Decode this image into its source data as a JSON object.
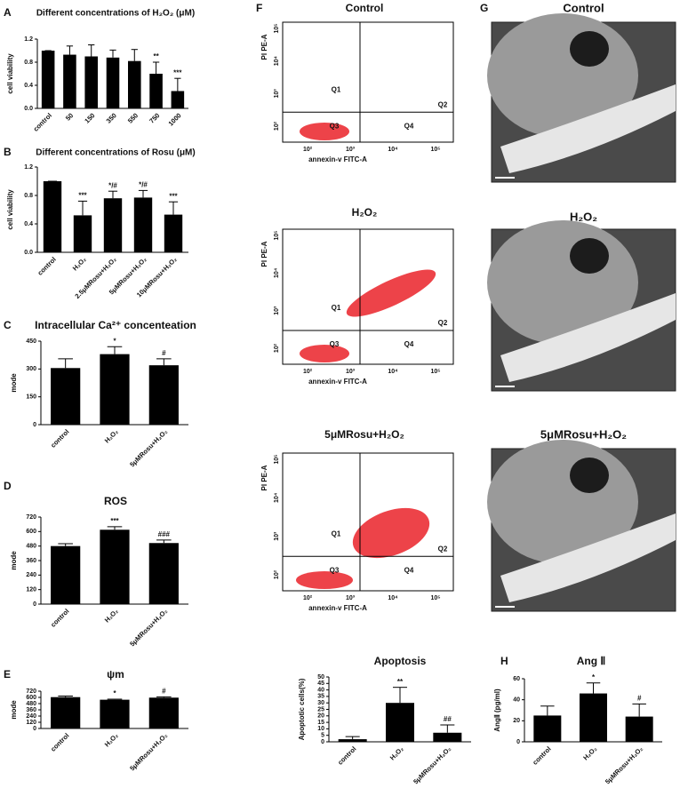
{
  "chart_data": [
    {
      "type": "bar",
      "panel": "A",
      "title": "Different concentrations of  H₂O₂ (μM)",
      "y_label": "cell viability",
      "categories": [
        "control",
        "50",
        "150",
        "350",
        "550",
        "750",
        "1000"
      ],
      "values": [
        1.0,
        0.93,
        0.9,
        0.88,
        0.82,
        0.6,
        0.3
      ],
      "errors": [
        0,
        0.15,
        0.2,
        0.13,
        0.2,
        0.2,
        0.22
      ],
      "annotations": [
        null,
        null,
        null,
        null,
        null,
        "**",
        "***"
      ],
      "color": "#000000",
      "ylim": [
        0,
        1.2
      ],
      "yticks": [
        {
          "value": 0,
          "label": "0.0"
        },
        {
          "value": 0.4,
          "label": "0.4"
        },
        {
          "value": 0.8,
          "label": "0.8"
        },
        {
          "value": 1.2,
          "label": "1.2"
        }
      ]
    },
    {
      "type": "bar",
      "panel": "B",
      "title": "Different concentrations of Rosu (μM)",
      "y_label": "cell viability",
      "categories": [
        "control",
        "H₂O₂",
        "2.5μMRosu+H₂O₂",
        "5μMRosu+H₂O₂",
        "10μMRosu+H₂O₂"
      ],
      "values": [
        1.0,
        0.52,
        0.76,
        0.77,
        0.53
      ],
      "errors": [
        0,
        0.2,
        0.1,
        0.1,
        0.18
      ],
      "annotations": [
        null,
        "***",
        "*/#",
        "*/#",
        "***"
      ],
      "color": "#000000",
      "ylim": [
        0,
        1.2
      ],
      "yticks": [
        {
          "value": 0,
          "label": "0.0"
        },
        {
          "value": 0.4,
          "label": "0.4"
        },
        {
          "value": 0.8,
          "label": "0.8"
        },
        {
          "value": 1.2,
          "label": "1.2"
        }
      ]
    },
    {
      "type": "bar",
      "panel": "C",
      "title": "Intracellular Ca²⁺ concenteation",
      "y_label": "mode",
      "categories": [
        "control",
        "H₂O₂",
        "5μMRosu+H₂O₂"
      ],
      "values": [
        305,
        380,
        320
      ],
      "errors": [
        50,
        40,
        35
      ],
      "annotations": [
        null,
        "*",
        "#"
      ],
      "color": "#000000",
      "ylim": [
        0,
        450
      ],
      "yticks": [
        0,
        150,
        300,
        450
      ]
    },
    {
      "type": "bar",
      "panel": "D",
      "title": "ROS",
      "y_label": "mode",
      "categories": [
        "control",
        "H₂O₂",
        "5μMRosu+H₂O₂"
      ],
      "values": [
        480,
        615,
        505
      ],
      "errors": [
        20,
        25,
        25
      ],
      "annotations": [
        null,
        "***",
        "###"
      ],
      "color": "#000000",
      "ylim": [
        0,
        720
      ],
      "yticks": [
        0,
        120,
        240,
        360,
        480,
        600,
        720
      ]
    },
    {
      "type": "bar",
      "panel": "E",
      "title": "ψm",
      "y_label": "mode",
      "categories": [
        "control",
        "H₂O₂",
        "5μMRosu+H₂O₂"
      ],
      "values": [
        605,
        555,
        595
      ],
      "errors": [
        20,
        10,
        15
      ],
      "annotations": [
        null,
        "*",
        "#"
      ],
      "color": "#000000",
      "ylim": [
        0,
        720
      ],
      "yticks": [
        0,
        120,
        240,
        360,
        480,
        600,
        720
      ]
    },
    {
      "type": "bar",
      "title": "Apoptosis",
      "y_label": "Apoptotic cells(%)",
      "categories": [
        "control",
        "H₂O₂",
        "5μMRosu+H₂O₂"
      ],
      "values": [
        2,
        30,
        7
      ],
      "errors": [
        2,
        12,
        6
      ],
      "annotations": [
        null,
        "**",
        "##"
      ],
      "color": "#000000",
      "ylim": [
        0,
        50
      ],
      "yticks": [
        0,
        5,
        10,
        15,
        20,
        25,
        30,
        35,
        40,
        45,
        50
      ]
    },
    {
      "type": "bar",
      "panel": "H",
      "title": "Ang Ⅱ",
      "y_label": "AngⅡ (pg/ml)",
      "categories": [
        "control",
        "H₂O₂",
        "5μMRosu+H₂O₂"
      ],
      "values": [
        25,
        46,
        24
      ],
      "errors": [
        9,
        10,
        12
      ],
      "annotations": [
        null,
        "*",
        "#"
      ],
      "color": "#000000",
      "ylim": [
        0,
        60
      ],
      "yticks": [
        0,
        20,
        40,
        60
      ]
    }
  ],
  "flow_panels": {
    "panel": "F",
    "plots": [
      {
        "title": "Control",
        "x_label": "annexin-v FITC-A",
        "y_label": "PI PE-A",
        "quadrants": [
          "Q1",
          "Q2",
          "Q3",
          "Q4"
        ],
        "x_ticks": [
          "10²",
          "10³",
          "10⁴",
          "10⁵"
        ],
        "y_ticks": [
          "10²",
          "10³",
          "10⁴",
          "10⁵"
        ]
      },
      {
        "title": "H₂O₂",
        "x_label": "annexin-v FITC-A",
        "y_label": "PI PE-A",
        "quadrants": [
          "Q1",
          "Q2",
          "Q3",
          "Q4"
        ],
        "x_ticks": [
          "10²",
          "10³",
          "10⁴",
          "10⁵"
        ],
        "y_ticks": [
          "10²",
          "10³",
          "10⁴",
          "10⁵"
        ]
      },
      {
        "title": "5μMRosu+H₂O₂",
        "x_label": "annexin-v FITC-A",
        "y_label": "PI PE-A",
        "quadrants": [
          "Q1",
          "Q2",
          "Q3",
          "Q4"
        ],
        "x_ticks": [
          "10²",
          "10³",
          "10⁴",
          "10⁵"
        ],
        "y_ticks": [
          "10²",
          "10³",
          "10⁴",
          "10⁵"
        ]
      }
    ]
  },
  "tem_panels": {
    "panel": "G",
    "images": [
      {
        "title": "Control"
      },
      {
        "title": "H₂O₂"
      },
      {
        "title": "5μMRosu+H₂O₂"
      }
    ]
  }
}
